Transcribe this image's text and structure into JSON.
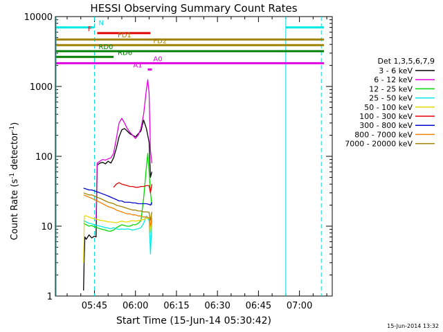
{
  "chart_data": {
    "type": "line",
    "title": "HESSI Observing Summary Count Rates",
    "xlabel": "Start Time (15-Jun-14 05:30:42)",
    "ylabel_main": "Count Rate (s",
    "ylabel_sup1": "-1",
    "ylabel_mid": " detector",
    "ylabel_sup2": "-1",
    "ylabel_end": ")",
    "y_scale": "log",
    "ylim": [
      1,
      10000
    ],
    "xlim": [
      "05:30:42",
      "07:12:00"
    ],
    "x_ticks": [
      {
        "label": "05:45",
        "min": 45
      },
      {
        "label": "06:00",
        "min": 60
      },
      {
        "label": "06:15",
        "min": 75
      },
      {
        "label": "06:30",
        "min": 90
      },
      {
        "label": "06:45",
        "min": 105
      },
      {
        "label": "07:00",
        "min": 120
      }
    ],
    "y_ticks": [
      {
        "label": "1",
        "value": 1
      },
      {
        "label": "10",
        "value": 10
      },
      {
        "label": "100",
        "value": 100
      },
      {
        "label": "1000",
        "value": 1000
      },
      {
        "label": "10000",
        "value": 10000
      }
    ],
    "legend": {
      "placement": "right",
      "title": "Det 1,3,5,6,7,9",
      "entries": [
        {
          "label": "3 - 6 keV",
          "color": "#000000"
        },
        {
          "label": "6 - 12 keV",
          "color": "#e000e0"
        },
        {
          "label": "12 - 25 keV",
          "color": "#00d800"
        },
        {
          "label": "25 - 50 keV",
          "color": "#00e8e8"
        },
        {
          "label": "50 - 100 keV",
          "color": "#e8d800"
        },
        {
          "label": "100 - 300 keV",
          "color": "#e00000"
        },
        {
          "label": "300 - 800 keV",
          "color": "#0000c8"
        },
        {
          "label": "800 - 7000 keV",
          "color": "#f08000"
        },
        {
          "label": "7000 - 20000 keV",
          "color": "#a08000"
        }
      ]
    },
    "flag_bars": [
      {
        "label": "N",
        "color": "#00e8e8",
        "start_min": 31,
        "end_min": 45,
        "y": 7000,
        "label_min": 46,
        "label_side": "right"
      },
      {
        "label": "N",
        "color": "#00e8e8",
        "start_min": 115,
        "end_min": 129,
        "y": 7000
      },
      {
        "label": "F",
        "color": "#e00000",
        "start_min": 46,
        "end_min": 65.5,
        "y": 5800,
        "label_min": 44.5,
        "label_side": "left"
      },
      {
        "label": "FD1",
        "color": "#a08000",
        "start_min": 31,
        "end_min": 129,
        "y": 4700,
        "label_min": 56,
        "label_side": "center"
      },
      {
        "label": "FD2",
        "color": "#a08000",
        "start_min": 31,
        "end_min": 129,
        "y": 3900,
        "label_min": 66,
        "label_side": "right"
      },
      {
        "label": "RD0",
        "color": "#008000",
        "start_min": 31,
        "end_min": 129,
        "y": 3200,
        "label_min": 46,
        "label_side": "right"
      },
      {
        "label": "RD6",
        "color": "#008000",
        "start_min": 31,
        "end_min": 52,
        "y": 2650,
        "label_min": 53,
        "label_side": "right"
      },
      {
        "label": "A0",
        "color": "#e000e0",
        "start_min": 31,
        "end_min": 129,
        "y": 2150,
        "label_min": 66,
        "label_side": "right"
      },
      {
        "label": "A1",
        "color": "#e000e0",
        "start_min": 64.5,
        "end_min": 66,
        "y": 1750,
        "label_min": 63,
        "label_side": "left"
      }
    ],
    "dashed_lines_min": [
      45,
      128
    ],
    "solid_lines_min": [
      31,
      115
    ],
    "series": [
      {
        "label": "3 - 6 keV",
        "color": "#000000",
        "points": [
          [
            41,
            1.2
          ],
          [
            41.2,
            3
          ],
          [
            41.5,
            7
          ],
          [
            42,
            6.5
          ],
          [
            43,
            7.5
          ],
          [
            44,
            6.8
          ],
          [
            45,
            7.2
          ],
          [
            45.6,
            7
          ],
          [
            46,
            75
          ],
          [
            47,
            80
          ],
          [
            48,
            82
          ],
          [
            49,
            78
          ],
          [
            50,
            85
          ],
          [
            51,
            80
          ],
          [
            52,
            95
          ],
          [
            53,
            130
          ],
          [
            54,
            190
          ],
          [
            55,
            240
          ],
          [
            56,
            250
          ],
          [
            57,
            230
          ],
          [
            58,
            210
          ],
          [
            59,
            200
          ],
          [
            60,
            190
          ],
          [
            61,
            210
          ],
          [
            62,
            230
          ],
          [
            63,
            330
          ],
          [
            64,
            250
          ],
          [
            65,
            160
          ],
          [
            65.5,
            50
          ],
          [
            66,
            60
          ]
        ]
      },
      {
        "label": "6 - 12 keV",
        "color": "#e000e0",
        "points": [
          [
            45.6,
            12
          ],
          [
            46,
            80
          ],
          [
            47,
            85
          ],
          [
            48,
            90
          ],
          [
            49,
            88
          ],
          [
            50,
            92
          ],
          [
            51,
            95
          ],
          [
            52,
            110
          ],
          [
            53,
            180
          ],
          [
            54,
            300
          ],
          [
            55,
            350
          ],
          [
            56,
            300
          ],
          [
            57,
            250
          ],
          [
            58,
            220
          ],
          [
            59,
            200
          ],
          [
            60,
            180
          ],
          [
            61,
            200
          ],
          [
            62,
            250
          ],
          [
            63,
            400
          ],
          [
            64,
            900
          ],
          [
            64.5,
            1250
          ],
          [
            65,
            800
          ],
          [
            65.5,
            120
          ],
          [
            66,
            80
          ]
        ]
      },
      {
        "label": "12 - 25 keV",
        "color": "#00d800",
        "points": [
          [
            41,
            11
          ],
          [
            42,
            10.5
          ],
          [
            43,
            10
          ],
          [
            44,
            10.2
          ],
          [
            45,
            9.8
          ],
          [
            46,
            9.5
          ],
          [
            47,
            9.2
          ],
          [
            48,
            9
          ],
          [
            49,
            8.8
          ],
          [
            50,
            8.5
          ],
          [
            51,
            8.5
          ],
          [
            52,
            8.8
          ],
          [
            53,
            9.5
          ],
          [
            54,
            10
          ],
          [
            55,
            10.5
          ],
          [
            56,
            10.2
          ],
          [
            57,
            10
          ],
          [
            58,
            10
          ],
          [
            59,
            10.5
          ],
          [
            60,
            10.5
          ],
          [
            61,
            11
          ],
          [
            62,
            12
          ],
          [
            63,
            25
          ],
          [
            64,
            70
          ],
          [
            64.5,
            110
          ],
          [
            65,
            60
          ],
          [
            65.5,
            30
          ],
          [
            66,
            20
          ]
        ]
      },
      {
        "label": "25 - 50 keV",
        "color": "#00e8e8",
        "points": [
          [
            41,
            12
          ],
          [
            42,
            11.5
          ],
          [
            43,
            11
          ],
          [
            44,
            10.8
          ],
          [
            45,
            10.5
          ],
          [
            46,
            10.2
          ],
          [
            47,
            10
          ],
          [
            48,
            9.8
          ],
          [
            49,
            9.5
          ],
          [
            50,
            9.4
          ],
          [
            51,
            9.2
          ],
          [
            52,
            9.5
          ],
          [
            53,
            9.2
          ],
          [
            54,
            9
          ],
          [
            55,
            9.1
          ],
          [
            56,
            9
          ],
          [
            57,
            9.2
          ],
          [
            58,
            9
          ],
          [
            59,
            8.8
          ],
          [
            60,
            9
          ],
          [
            61,
            9.2
          ],
          [
            62,
            9.5
          ],
          [
            63,
            11
          ],
          [
            64,
            14
          ],
          [
            65,
            12
          ],
          [
            65.5,
            4
          ],
          [
            66,
            12
          ]
        ]
      },
      {
        "label": "50 - 100 keV",
        "color": "#e8d800",
        "points": [
          [
            41,
            3
          ],
          [
            41.3,
            14
          ],
          [
            42,
            14
          ],
          [
            43,
            13.5
          ],
          [
            44,
            13
          ],
          [
            45,
            12.8
          ],
          [
            46,
            12.5
          ],
          [
            47,
            12.2
          ],
          [
            48,
            12
          ],
          [
            49,
            11.8
          ],
          [
            50,
            11.5
          ],
          [
            51,
            11.5
          ],
          [
            52,
            11.3
          ],
          [
            53,
            11.2
          ],
          [
            54,
            11.5
          ],
          [
            55,
            11.8
          ],
          [
            56,
            11.5
          ],
          [
            57,
            11.5
          ],
          [
            58,
            11.8
          ],
          [
            59,
            12
          ],
          [
            60,
            11.8
          ],
          [
            61,
            12
          ],
          [
            62,
            12.2
          ],
          [
            63,
            12.5
          ],
          [
            64,
            13
          ],
          [
            65,
            13
          ],
          [
            65.5,
            8
          ],
          [
            66,
            14
          ]
        ]
      },
      {
        "label": "100 - 300 keV",
        "color": "#e00000",
        "points": [
          [
            52,
            36
          ],
          [
            53,
            40
          ],
          [
            54,
            42
          ],
          [
            55,
            40
          ],
          [
            56,
            39
          ],
          [
            57,
            38
          ],
          [
            58,
            37
          ],
          [
            59,
            37
          ],
          [
            60,
            36
          ],
          [
            61,
            36
          ],
          [
            62,
            37
          ],
          [
            63,
            37
          ],
          [
            64,
            38
          ],
          [
            65,
            38
          ],
          [
            65.5,
            30
          ],
          [
            66,
            40
          ]
        ]
      },
      {
        "label": "300 - 800 keV",
        "color": "#0000c8",
        "points": [
          [
            41,
            35
          ],
          [
            42,
            34
          ],
          [
            43,
            33
          ],
          [
            44,
            33
          ],
          [
            45,
            32
          ],
          [
            46,
            31
          ],
          [
            47,
            30
          ],
          [
            48,
            29
          ],
          [
            49,
            28
          ],
          [
            50,
            27
          ],
          [
            51,
            26
          ],
          [
            52,
            25
          ],
          [
            53,
            24
          ],
          [
            54,
            23
          ],
          [
            55,
            23
          ],
          [
            56,
            22
          ],
          [
            57,
            22
          ],
          [
            58,
            22
          ],
          [
            59,
            21.5
          ],
          [
            60,
            21.5
          ],
          [
            61,
            21
          ],
          [
            62,
            21
          ],
          [
            63,
            21
          ],
          [
            64,
            21
          ],
          [
            65,
            20.5
          ],
          [
            65.5,
            20
          ],
          [
            66,
            22
          ]
        ]
      },
      {
        "label": "800 - 7000 keV",
        "color": "#f08000",
        "points": [
          [
            41,
            28
          ],
          [
            42,
            27
          ],
          [
            43,
            26
          ],
          [
            44,
            25
          ],
          [
            45,
            24
          ],
          [
            46,
            23
          ],
          [
            47,
            22
          ],
          [
            48,
            21
          ],
          [
            49,
            20
          ],
          [
            50,
            19
          ],
          [
            51,
            18.5
          ],
          [
            52,
            18
          ],
          [
            53,
            17
          ],
          [
            54,
            16.5
          ],
          [
            55,
            16
          ],
          [
            56,
            15.5
          ],
          [
            57,
            15
          ],
          [
            58,
            15
          ],
          [
            59,
            14.5
          ],
          [
            60,
            14.5
          ],
          [
            61,
            14
          ],
          [
            62,
            14
          ],
          [
            63,
            13.5
          ],
          [
            64,
            13.5
          ],
          [
            65,
            13.2
          ],
          [
            65.5,
            10
          ],
          [
            66,
            13
          ]
        ]
      },
      {
        "label": "7000 - 20000 keV",
        "color": "#a08000",
        "points": [
          [
            41,
            30
          ],
          [
            42,
            29
          ],
          [
            43,
            28
          ],
          [
            44,
            28
          ],
          [
            45,
            27
          ],
          [
            46,
            26
          ],
          [
            47,
            25
          ],
          [
            48,
            24
          ],
          [
            49,
            23
          ],
          [
            50,
            22
          ],
          [
            51,
            21.5
          ],
          [
            52,
            21
          ],
          [
            53,
            20
          ],
          [
            54,
            19.5
          ],
          [
            55,
            19
          ],
          [
            56,
            18.5
          ],
          [
            57,
            18
          ],
          [
            58,
            17.5
          ],
          [
            59,
            17
          ],
          [
            60,
            17
          ],
          [
            61,
            16.5
          ],
          [
            62,
            16.5
          ],
          [
            63,
            16
          ],
          [
            64,
            16
          ],
          [
            65,
            15.8
          ],
          [
            65.5,
            12
          ],
          [
            66,
            16
          ]
        ]
      }
    ]
  },
  "timestamp": "15-Jun-2014 13:32"
}
